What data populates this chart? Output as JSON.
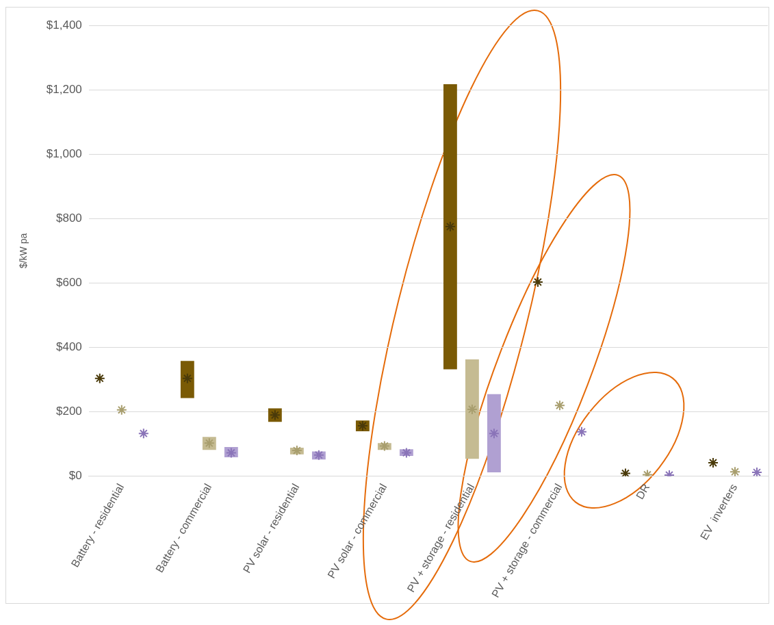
{
  "chart_data": {
    "type": "bar",
    "ylabel": "$/kW pa",
    "categories": [
      null,
      "Battery - residential",
      null,
      null,
      null,
      "Battery - commercial",
      null,
      null,
      null,
      "PV solar - residential",
      null,
      null,
      null,
      "PV solar - commercial",
      null,
      null,
      null,
      "PV + storage - residential",
      null,
      null,
      null,
      "PV + storage - commercial",
      null,
      null,
      null,
      "DR",
      null,
      null,
      null,
      "EV  inverters",
      null
    ],
    "series": [
      {
        "color": "#7a5a05",
        "base": [
          null,
          null,
          null,
          null,
          243,
          null,
          null,
          null,
          169,
          null,
          null,
          null,
          140,
          null,
          null,
          null,
          332,
          null,
          null,
          null,
          null,
          null,
          null,
          null,
          null,
          null,
          null,
          null,
          null,
          null,
          null
        ],
        "values": [
          null,
          null,
          null,
          null,
          115,
          null,
          null,
          null,
          42,
          null,
          null,
          null,
          33,
          null,
          null,
          null,
          885,
          null,
          null,
          null,
          null,
          null,
          null,
          null,
          null,
          null,
          null,
          null,
          null,
          null,
          null
        ]
      },
      {
        "color": "#c5bb92",
        "base": [
          null,
          null,
          null,
          null,
          null,
          82,
          null,
          null,
          null,
          68,
          null,
          null,
          null,
          82,
          null,
          null,
          null,
          54,
          null,
          null,
          null,
          null,
          null,
          null,
          null,
          null,
          null,
          null,
          null,
          null,
          null
        ],
        "values": [
          null,
          null,
          null,
          null,
          null,
          40,
          null,
          null,
          null,
          21,
          null,
          null,
          null,
          21,
          null,
          null,
          null,
          309,
          null,
          null,
          null,
          null,
          null,
          null,
          null,
          null,
          null,
          null,
          null,
          null,
          null
        ]
      },
      {
        "color": "#b0a0d2",
        "base": [
          null,
          null,
          null,
          null,
          null,
          null,
          59,
          null,
          null,
          null,
          52,
          null,
          null,
          null,
          63,
          null,
          null,
          null,
          12,
          null,
          null,
          null,
          null,
          null,
          null,
          null,
          null,
          null,
          null,
          null,
          null
        ],
        "values": [
          null,
          null,
          null,
          null,
          null,
          null,
          32,
          null,
          null,
          null,
          25,
          null,
          null,
          null,
          21,
          null,
          null,
          null,
          243,
          null,
          null,
          null,
          null,
          null,
          null,
          null,
          null,
          null,
          null,
          null,
          null
        ]
      },
      {
        "type": "scatter",
        "color": "#4a3a0a",
        "marker": "cross",
        "values": [
          304,
          null,
          null,
          null,
          304,
          null,
          null,
          null,
          190,
          null,
          null,
          null,
          157,
          null,
          null,
          null,
          775,
          null,
          null,
          null,
          603,
          null,
          null,
          null,
          9,
          null,
          null,
          null,
          42,
          null,
          null
        ]
      },
      {
        "type": "scatter",
        "color": "#a89e6e",
        "marker": "cross",
        "values": [
          null,
          206,
          null,
          null,
          null,
          103,
          null,
          null,
          null,
          80,
          null,
          null,
          null,
          94,
          null,
          null,
          null,
          208,
          null,
          null,
          null,
          220,
          null,
          null,
          null,
          5,
          null,
          null,
          null,
          14,
          null
        ]
      },
      {
        "type": "scatter",
        "color": "#8a74b8",
        "marker": "cross",
        "values": [
          null,
          null,
          133,
          null,
          null,
          null,
          73,
          null,
          null,
          null,
          66,
          null,
          null,
          null,
          73,
          null,
          null,
          null,
          133,
          null,
          null,
          null,
          138,
          null,
          null,
          null,
          4,
          null,
          null,
          null,
          12
        ]
      }
    ],
    "ylim": [
      0,
      1400
    ],
    "yticks": [
      {
        "value": 0,
        "label": "$0"
      },
      {
        "value": 200,
        "label": "$200"
      },
      {
        "value": 400,
        "label": "$400"
      },
      {
        "value": 600,
        "label": "$600"
      },
      {
        "value": 800,
        "label": "$800"
      },
      {
        "value": 1000,
        "label": "$1,000"
      },
      {
        "value": 1200,
        "label": "$1,200"
      },
      {
        "value": 1400,
        "label": "$1,400"
      }
    ],
    "grid": "y",
    "legend": false
  }
}
